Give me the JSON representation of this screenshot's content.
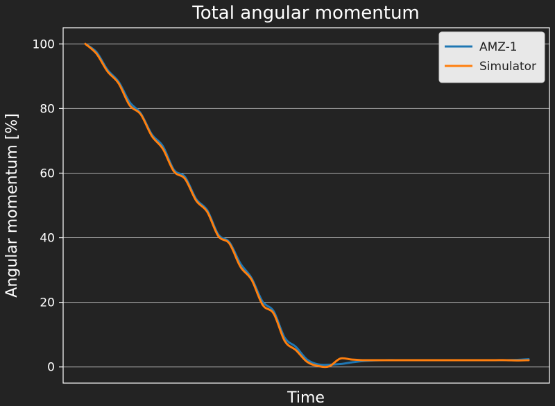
{
  "colors": {
    "background": "#232323",
    "axes": "#ffffff",
    "grid": "#b0b0b0",
    "legend_bg": "#e8e8e8",
    "legend_border": "#cccccc"
  },
  "chart_data": {
    "type": "line",
    "title": "Total angular momentum",
    "xlabel": "Time",
    "ylabel": "Angular momentum [%]",
    "x_tick_labels": "none",
    "ylim": [
      -5,
      105
    ],
    "yticks": [
      0,
      20,
      40,
      60,
      80,
      100
    ],
    "grid": "horizontal",
    "legend_position": "top-right",
    "series": [
      {
        "name": "AMZ-1",
        "color": "#1f77b4",
        "x": [
          0,
          0.025,
          0.05,
          0.075,
          0.1,
          0.125,
          0.15,
          0.175,
          0.2,
          0.225,
          0.25,
          0.275,
          0.3,
          0.325,
          0.35,
          0.375,
          0.4,
          0.425,
          0.45,
          0.475,
          0.5,
          0.525,
          0.55,
          0.575,
          0.6,
          0.625,
          0.65,
          0.675,
          0.7,
          0.725,
          0.75,
          0.775,
          0.8,
          0.825,
          0.85,
          0.875,
          0.9,
          0.925,
          0.95,
          0.975,
          1
        ],
        "values": [
          100,
          97.5,
          92,
          88.3,
          82,
          78.5,
          72,
          68.3,
          61,
          58.8,
          52,
          48.5,
          41,
          38.6,
          32,
          27.5,
          20.2,
          17.2,
          9,
          6.2,
          2.3,
          0.8,
          0.7,
          0.9,
          1.4,
          1.8,
          2,
          2.1,
          2.1,
          2.1,
          2.1,
          2.1,
          2.1,
          2.1,
          2.1,
          2.1,
          2.1,
          2.1,
          2.1,
          2.2,
          2.4
        ]
      },
      {
        "name": "Simulator",
        "color": "#ff7f0e",
        "x": [
          0,
          0.025,
          0.05,
          0.075,
          0.1,
          0.125,
          0.15,
          0.175,
          0.2,
          0.225,
          0.25,
          0.275,
          0.3,
          0.325,
          0.35,
          0.375,
          0.4,
          0.425,
          0.45,
          0.475,
          0.5,
          0.525,
          0.55,
          0.575,
          0.6,
          0.625,
          0.65,
          0.675,
          0.7,
          0.725,
          0.75,
          0.775,
          0.8,
          0.825,
          0.85,
          0.875,
          0.9,
          0.925,
          0.95,
          0.975,
          1
        ],
        "values": [
          100,
          97,
          91.5,
          87.8,
          81,
          78.2,
          71.5,
          67.5,
          60.5,
          58.2,
          51.5,
          48,
          40.5,
          38.2,
          31,
          27,
          19.2,
          16.5,
          8,
          5.2,
          1.6,
          0.3,
          0.2,
          2.6,
          2.3,
          2.1,
          2.1,
          2.1,
          2.1,
          2.1,
          2.1,
          2.1,
          2.1,
          2.1,
          2.1,
          2.1,
          2.1,
          2.1,
          2.1,
          2,
          2.1
        ]
      }
    ]
  }
}
